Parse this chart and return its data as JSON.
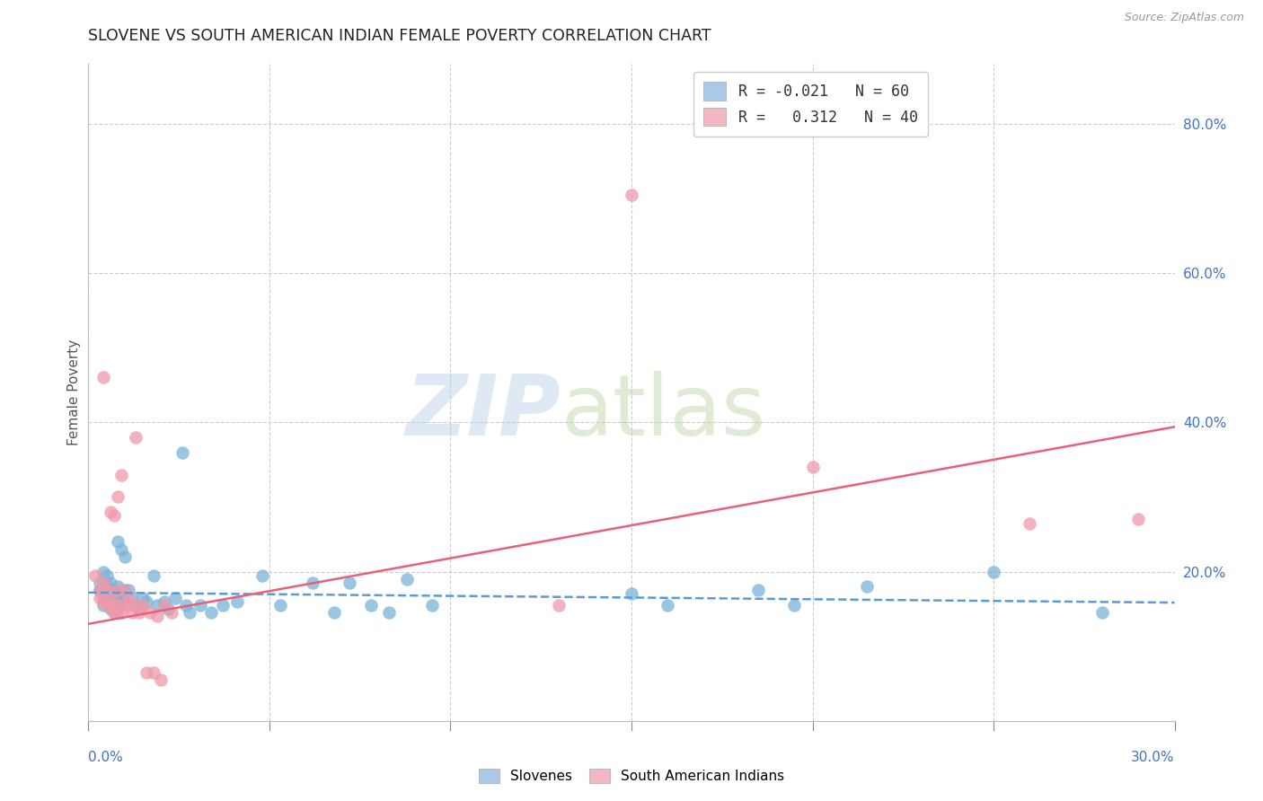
{
  "title": "SLOVENE VS SOUTH AMERICAN INDIAN FEMALE POVERTY CORRELATION CHART",
  "source": "Source: ZipAtlas.com",
  "ylabel": "Female Poverty",
  "right_yticks": [
    "80.0%",
    "60.0%",
    "40.0%",
    "20.0%"
  ],
  "right_ytick_vals": [
    0.8,
    0.6,
    0.4,
    0.2
  ],
  "xmin": 0.0,
  "xmax": 0.3,
  "ymin": 0.0,
  "ymax": 0.88,
  "legend_line1": "R = -0.021   N = 60",
  "legend_line2": "R =   0.312   N = 40",
  "blue_scatter": [
    [
      0.003,
      0.185
    ],
    [
      0.003,
      0.175
    ],
    [
      0.004,
      0.2
    ],
    [
      0.004,
      0.165
    ],
    [
      0.004,
      0.155
    ],
    [
      0.005,
      0.195
    ],
    [
      0.005,
      0.18
    ],
    [
      0.005,
      0.17
    ],
    [
      0.005,
      0.16
    ],
    [
      0.006,
      0.185
    ],
    [
      0.006,
      0.175
    ],
    [
      0.006,
      0.16
    ],
    [
      0.006,
      0.15
    ],
    [
      0.007,
      0.175
    ],
    [
      0.007,
      0.165
    ],
    [
      0.007,
      0.155
    ],
    [
      0.007,
      0.145
    ],
    [
      0.008,
      0.24
    ],
    [
      0.008,
      0.18
    ],
    [
      0.008,
      0.165
    ],
    [
      0.009,
      0.23
    ],
    [
      0.009,
      0.165
    ],
    [
      0.009,
      0.155
    ],
    [
      0.01,
      0.22
    ],
    [
      0.01,
      0.175
    ],
    [
      0.01,
      0.16
    ],
    [
      0.011,
      0.175
    ],
    [
      0.012,
      0.165
    ],
    [
      0.013,
      0.155
    ],
    [
      0.014,
      0.15
    ],
    [
      0.015,
      0.165
    ],
    [
      0.016,
      0.16
    ],
    [
      0.018,
      0.195
    ],
    [
      0.019,
      0.155
    ],
    [
      0.021,
      0.16
    ],
    [
      0.022,
      0.15
    ],
    [
      0.024,
      0.165
    ],
    [
      0.026,
      0.36
    ],
    [
      0.027,
      0.155
    ],
    [
      0.028,
      0.145
    ],
    [
      0.031,
      0.155
    ],
    [
      0.034,
      0.145
    ],
    [
      0.037,
      0.155
    ],
    [
      0.041,
      0.16
    ],
    [
      0.048,
      0.195
    ],
    [
      0.053,
      0.155
    ],
    [
      0.062,
      0.185
    ],
    [
      0.068,
      0.145
    ],
    [
      0.072,
      0.185
    ],
    [
      0.078,
      0.155
    ],
    [
      0.083,
      0.145
    ],
    [
      0.088,
      0.19
    ],
    [
      0.095,
      0.155
    ],
    [
      0.15,
      0.17
    ],
    [
      0.16,
      0.155
    ],
    [
      0.185,
      0.175
    ],
    [
      0.195,
      0.155
    ],
    [
      0.215,
      0.18
    ],
    [
      0.25,
      0.2
    ],
    [
      0.28,
      0.145
    ]
  ],
  "pink_scatter": [
    [
      0.002,
      0.195
    ],
    [
      0.003,
      0.175
    ],
    [
      0.003,
      0.165
    ],
    [
      0.004,
      0.46
    ],
    [
      0.004,
      0.185
    ],
    [
      0.004,
      0.16
    ],
    [
      0.005,
      0.175
    ],
    [
      0.005,
      0.155
    ],
    [
      0.006,
      0.28
    ],
    [
      0.006,
      0.165
    ],
    [
      0.006,
      0.155
    ],
    [
      0.007,
      0.275
    ],
    [
      0.007,
      0.155
    ],
    [
      0.007,
      0.145
    ],
    [
      0.008,
      0.3
    ],
    [
      0.008,
      0.175
    ],
    [
      0.008,
      0.145
    ],
    [
      0.009,
      0.33
    ],
    [
      0.009,
      0.155
    ],
    [
      0.009,
      0.145
    ],
    [
      0.01,
      0.175
    ],
    [
      0.011,
      0.165
    ],
    [
      0.011,
      0.155
    ],
    [
      0.012,
      0.145
    ],
    [
      0.013,
      0.38
    ],
    [
      0.013,
      0.155
    ],
    [
      0.014,
      0.145
    ],
    [
      0.015,
      0.155
    ],
    [
      0.016,
      0.065
    ],
    [
      0.017,
      0.145
    ],
    [
      0.018,
      0.065
    ],
    [
      0.019,
      0.14
    ],
    [
      0.02,
      0.055
    ],
    [
      0.021,
      0.155
    ],
    [
      0.023,
      0.145
    ],
    [
      0.13,
      0.155
    ],
    [
      0.15,
      0.705
    ],
    [
      0.2,
      0.34
    ],
    [
      0.26,
      0.265
    ],
    [
      0.29,
      0.27
    ]
  ],
  "blue_line_intercept": 0.172,
  "blue_line_slope": -0.045,
  "pink_line_intercept": 0.13,
  "pink_line_slope": 0.88,
  "grid_color": "#cccccc",
  "blue_color": "#7ab3d9",
  "pink_color": "#f099aa",
  "blue_line_color": "#5b9bd5",
  "pink_line_color": "#e8607a",
  "bg_color": "#ffffff",
  "blue_patch_color": "#aac8e8",
  "pink_patch_color": "#f4b8c4"
}
